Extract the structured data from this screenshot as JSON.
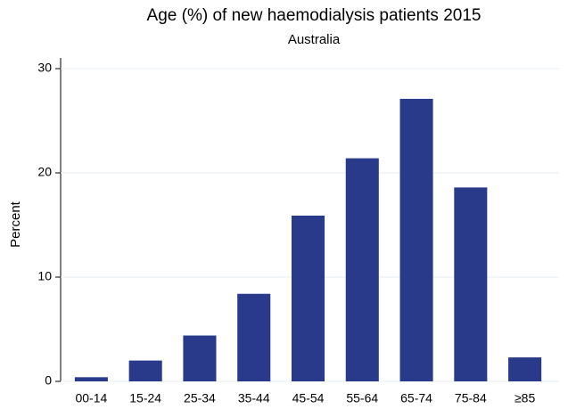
{
  "chart_data": {
    "type": "bar",
    "title": "Age (%) of new haemodialysis patients 2015",
    "subtitle": "Australia",
    "y_label": "Percent",
    "categories": [
      "00-14",
      "15-24",
      "25-34",
      "35-44",
      "45-54",
      "55-64",
      "65-74",
      "75-84",
      "≥85"
    ],
    "values": [
      0.4,
      2.0,
      4.4,
      8.4,
      15.9,
      21.4,
      27.1,
      18.6,
      2.3
    ],
    "color": "#2a3a8a",
    "ylim": [
      0,
      30
    ],
    "yticks": [
      0,
      10,
      20,
      30
    ],
    "grid": true
  }
}
